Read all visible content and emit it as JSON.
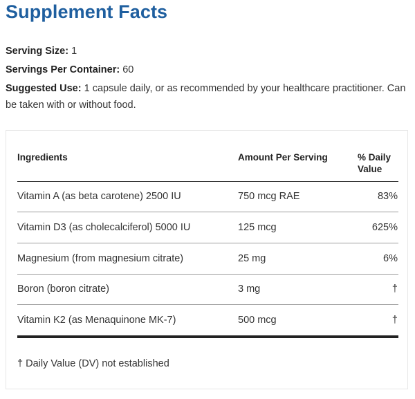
{
  "title": "Supplement Facts",
  "serving_size": {
    "label": "Serving Size:",
    "value": "1"
  },
  "servings_per_container": {
    "label": "Servings Per Container:",
    "value": "60"
  },
  "suggested_use": {
    "label": "Suggested Use:",
    "value": "1 capsule daily, or as recommended by your healthcare practitioner. Can be taken with or without food."
  },
  "table": {
    "headers": {
      "ingredients": "Ingredients",
      "amount": "Amount Per Serving",
      "dv": "% Daily Value"
    },
    "rows": [
      {
        "name": "Vitamin A (as beta carotene) 2500 IU",
        "amount": "750 mcg RAE",
        "dv": "83%"
      },
      {
        "name": "Vitamin D3 (as cholecalciferol) 5000 IU",
        "amount": "125 mcg",
        "dv": "625%"
      },
      {
        "name": "Magnesium (from magnesium citrate)",
        "amount": "25 mg",
        "dv": "6%"
      },
      {
        "name": "Boron (boron citrate)",
        "amount": "3 mg",
        "dv": "†"
      },
      {
        "name": "Vitamin K2 (as Menaquinone MK-7)",
        "amount": "500 mcg",
        "dv": "†"
      }
    ],
    "footnote": "† Daily Value (DV) not established"
  },
  "colors": {
    "title": "#1f5f9f",
    "text": "#333333"
  }
}
